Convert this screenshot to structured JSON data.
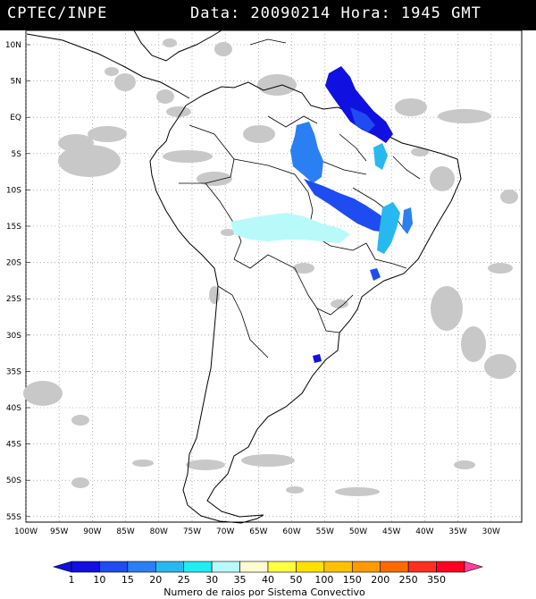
{
  "header": {
    "agency": "CPTEC/INPE",
    "datetime": "Data: 20090214 Hora: 1945 GMT"
  },
  "axes": {
    "lat_labels": [
      "10N",
      "5N",
      "EQ",
      "5S",
      "10S",
      "15S",
      "20S",
      "25S",
      "30S",
      "35S",
      "40S",
      "45S",
      "50S",
      "55S"
    ],
    "lon_labels": [
      "100W",
      "95W",
      "90W",
      "85W",
      "80W",
      "75W",
      "70W",
      "65W",
      "60W",
      "55W",
      "50W",
      "45W",
      "40W",
      "35W",
      "30W"
    ]
  },
  "legend": {
    "title": "Numero de raios por Sistema Convectivo",
    "bins": [
      {
        "label": "1",
        "color": "#1010e0"
      },
      {
        "label": "10",
        "color": "#1e4cf0"
      },
      {
        "label": "15",
        "color": "#2a7ff2"
      },
      {
        "label": "20",
        "color": "#28b8f0"
      },
      {
        "label": "25",
        "color": "#20ecf4"
      },
      {
        "label": "30",
        "color": "#b8fafa"
      },
      {
        "label": "35",
        "color": "#fffbd0"
      },
      {
        "label": "40",
        "color": "#ffff40"
      },
      {
        "label": "50",
        "color": "#ffe000"
      },
      {
        "label": "100",
        "color": "#ffc000"
      },
      {
        "label": "150",
        "color": "#ff9a00"
      },
      {
        "label": "200",
        "color": "#ff6a00"
      },
      {
        "label": "250",
        "color": "#ff3020"
      },
      {
        "label": "350",
        "color": "#ff0020"
      }
    ],
    "end_color_right": "#ff40a0"
  },
  "colors": {
    "cloud": "#c8c8c8",
    "coast": "#000000",
    "grid": "#808080"
  }
}
